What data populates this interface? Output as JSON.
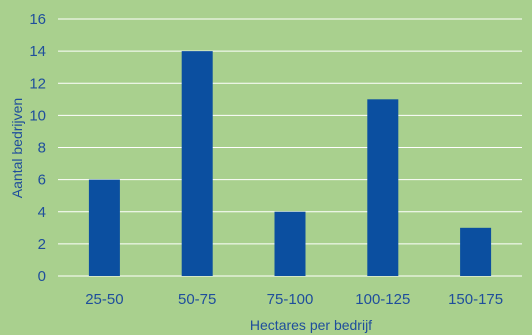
{
  "chart_data": {
    "type": "bar",
    "categories": [
      "25-50",
      "50-75",
      "75-100",
      "100-125",
      "150-175"
    ],
    "values": [
      6,
      14,
      4,
      11,
      3
    ],
    "title": "",
    "xlabel": "Hectares per bedrijf",
    "ylabel": "Aantal bedrijven",
    "ylim": [
      0,
      16
    ],
    "yticks": [
      0,
      2,
      4,
      6,
      8,
      10,
      12,
      14,
      16
    ],
    "grid": true,
    "colors": {
      "background": "#a9d08e",
      "bar": "#0b4fa0",
      "gridline": "#ffffff",
      "text": "#1f4e9c"
    }
  }
}
